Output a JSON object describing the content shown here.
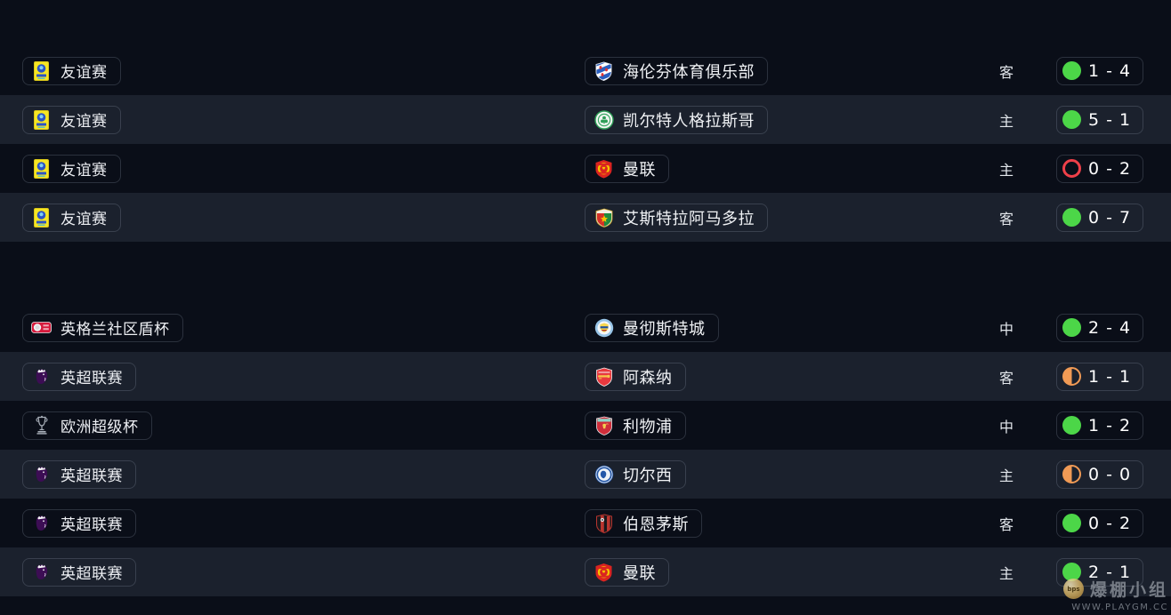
{
  "page": {
    "background": "#0a0e18",
    "row_alt_background": "#1b212d"
  },
  "colors": {
    "win": "#4cd648",
    "loss": "#ef4049",
    "draw": "#f09a55"
  },
  "rows": [
    {
      "competition": {
        "label": "友谊赛",
        "badge": "fifa-friendly-badge"
      },
      "opponent": {
        "name": "海伦芬体育俱乐部",
        "badge": "heerenveen-badge"
      },
      "venue": "客",
      "result": "win",
      "score": "1 - 4",
      "alt": false,
      "gap_after": false
    },
    {
      "competition": {
        "label": "友谊赛",
        "badge": "fifa-friendly-badge"
      },
      "opponent": {
        "name": "凯尔特人格拉斯哥",
        "badge": "celtic-badge"
      },
      "venue": "主",
      "result": "win",
      "score": "5 - 1",
      "alt": true,
      "gap_after": false
    },
    {
      "competition": {
        "label": "友谊赛",
        "badge": "fifa-friendly-badge"
      },
      "opponent": {
        "name": "曼联",
        "badge": "man-united-badge"
      },
      "venue": "主",
      "result": "loss",
      "score": "0 - 2",
      "alt": false,
      "gap_after": false
    },
    {
      "competition": {
        "label": "友谊赛",
        "badge": "fifa-friendly-badge"
      },
      "opponent": {
        "name": "艾斯特拉阿马多拉",
        "badge": "estrela-amadora-badge"
      },
      "venue": "客",
      "result": "win",
      "score": "0 - 7",
      "alt": true,
      "gap_after": true
    },
    {
      "competition": {
        "label": "英格兰社区盾杯",
        "badge": "community-shield-badge"
      },
      "opponent": {
        "name": "曼彻斯特城",
        "badge": "man-city-badge"
      },
      "venue": "中",
      "result": "win",
      "score": "2 - 4",
      "alt": false,
      "gap_after": false
    },
    {
      "competition": {
        "label": "英超联赛",
        "badge": "premier-league-badge"
      },
      "opponent": {
        "name": "阿森纳",
        "badge": "arsenal-badge"
      },
      "venue": "客",
      "result": "draw",
      "score": "1 - 1",
      "alt": true,
      "gap_after": false
    },
    {
      "competition": {
        "label": "欧洲超级杯",
        "badge": "uefa-super-cup-badge"
      },
      "opponent": {
        "name": "利物浦",
        "badge": "liverpool-badge"
      },
      "venue": "中",
      "result": "win",
      "score": "1 - 2",
      "alt": false,
      "gap_after": false
    },
    {
      "competition": {
        "label": "英超联赛",
        "badge": "premier-league-badge"
      },
      "opponent": {
        "name": "切尔西",
        "badge": "chelsea-badge"
      },
      "venue": "主",
      "result": "draw",
      "score": "0 - 0",
      "alt": true,
      "gap_after": false
    },
    {
      "competition": {
        "label": "英超联赛",
        "badge": "premier-league-badge"
      },
      "opponent": {
        "name": "伯恩茅斯",
        "badge": "bournemouth-badge"
      },
      "venue": "客",
      "result": "win",
      "score": "0 - 2",
      "alt": false,
      "gap_after": false
    },
    {
      "competition": {
        "label": "英超联赛",
        "badge": "premier-league-badge"
      },
      "opponent": {
        "name": "曼联",
        "badge": "man-united-badge"
      },
      "venue": "主",
      "result": "win",
      "score": "2 - 1",
      "alt": true,
      "gap_after": false
    }
  ],
  "watermark": {
    "ball_label": "bps",
    "group": "爆棚小组",
    "url": "WWW.PLAYGM.CC"
  }
}
